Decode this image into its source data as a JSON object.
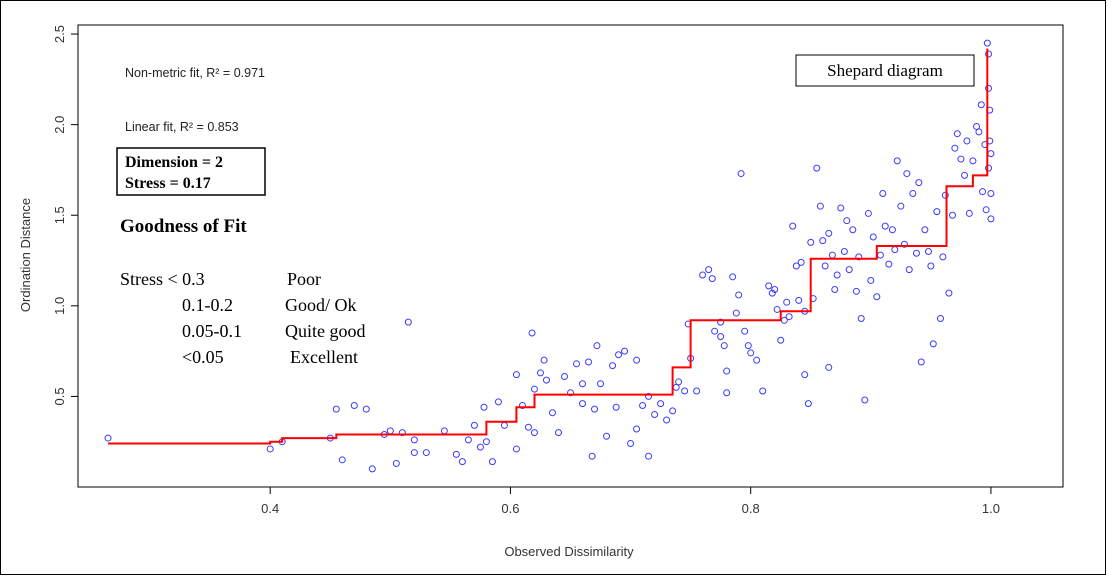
{
  "chart_data": {
    "type": "scatter",
    "title": "",
    "xlabel": "Observed Dissimilarity",
    "ylabel": "Ordination Distance",
    "xlim": [
      0.24,
      1.06
    ],
    "ylim": [
      0.0,
      2.55
    ],
    "x_ticks": [
      0.4,
      0.6,
      0.8,
      1.0
    ],
    "x_tick_labels": [
      "0.4",
      "0.6",
      "0.8",
      "1.0"
    ],
    "y_ticks": [
      0.5,
      1.0,
      1.5,
      2.0,
      2.5
    ],
    "y_tick_labels": [
      "0.5",
      "1.0",
      "1.5",
      "2.0",
      "2.5"
    ],
    "point_color": "#3b3bff",
    "line_color": "#ff0000",
    "annotations": {
      "nonmetric_fit": "Non-metric fit, R² = 0.971",
      "linear_fit": "Linear fit, R² = 0.853",
      "legend_title": "Shepard diagram",
      "dimension": "Dimension = 2",
      "stress": "Stress = 0.17",
      "goodness_title": "Goodness of Fit",
      "goodness_rows": [
        {
          "range": "Stress < 0.3",
          "label": "Poor"
        },
        {
          "range": "0.1-0.2",
          "label": "Good/ Ok"
        },
        {
          "range": "0.05-0.1",
          "label": "Quite good"
        },
        {
          "range": "<0.05",
          "label": "Excellent"
        }
      ]
    },
    "fit_step": [
      [
        0.265,
        0.24
      ],
      [
        0.4,
        0.24
      ],
      [
        0.4,
        0.25
      ],
      [
        0.41,
        0.25
      ],
      [
        0.41,
        0.27
      ],
      [
        0.455,
        0.27
      ],
      [
        0.455,
        0.29
      ],
      [
        0.58,
        0.29
      ],
      [
        0.58,
        0.36
      ],
      [
        0.605,
        0.36
      ],
      [
        0.605,
        0.44
      ],
      [
        0.62,
        0.44
      ],
      [
        0.62,
        0.51
      ],
      [
        0.735,
        0.51
      ],
      [
        0.735,
        0.66
      ],
      [
        0.75,
        0.66
      ],
      [
        0.75,
        0.92
      ],
      [
        0.825,
        0.92
      ],
      [
        0.825,
        0.97
      ],
      [
        0.85,
        0.97
      ],
      [
        0.85,
        1.26
      ],
      [
        0.905,
        1.26
      ],
      [
        0.905,
        1.33
      ],
      [
        0.963,
        1.33
      ],
      [
        0.963,
        1.66
      ],
      [
        0.985,
        1.66
      ],
      [
        0.985,
        1.72
      ],
      [
        0.997,
        1.72
      ],
      [
        0.997,
        2.42
      ]
    ],
    "points": [
      [
        0.265,
        0.27
      ],
      [
        0.4,
        0.21
      ],
      [
        0.41,
        0.25
      ],
      [
        0.45,
        0.27
      ],
      [
        0.455,
        0.43
      ],
      [
        0.46,
        0.15
      ],
      [
        0.47,
        0.45
      ],
      [
        0.48,
        0.43
      ],
      [
        0.485,
        0.1
      ],
      [
        0.495,
        0.29
      ],
      [
        0.5,
        0.31
      ],
      [
        0.505,
        0.13
      ],
      [
        0.51,
        0.3
      ],
      [
        0.515,
        0.91
      ],
      [
        0.52,
        0.26
      ],
      [
        0.52,
        0.19
      ],
      [
        0.53,
        0.19
      ],
      [
        0.545,
        0.31
      ],
      [
        0.555,
        0.18
      ],
      [
        0.56,
        0.14
      ],
      [
        0.565,
        0.26
      ],
      [
        0.57,
        0.34
      ],
      [
        0.575,
        0.22
      ],
      [
        0.578,
        0.44
      ],
      [
        0.58,
        0.25
      ],
      [
        0.585,
        0.14
      ],
      [
        0.59,
        0.47
      ],
      [
        0.595,
        0.34
      ],
      [
        0.605,
        0.21
      ],
      [
        0.605,
        0.62
      ],
      [
        0.61,
        0.45
      ],
      [
        0.615,
        0.33
      ],
      [
        0.618,
        0.85
      ],
      [
        0.62,
        0.3
      ],
      [
        0.62,
        0.54
      ],
      [
        0.625,
        0.63
      ],
      [
        0.628,
        0.7
      ],
      [
        0.63,
        0.59
      ],
      [
        0.635,
        0.41
      ],
      [
        0.64,
        0.3
      ],
      [
        0.645,
        0.61
      ],
      [
        0.65,
        0.52
      ],
      [
        0.655,
        0.68
      ],
      [
        0.66,
        0.46
      ],
      [
        0.66,
        0.57
      ],
      [
        0.665,
        0.69
      ],
      [
        0.668,
        0.17
      ],
      [
        0.67,
        0.43
      ],
      [
        0.672,
        0.78
      ],
      [
        0.675,
        0.57
      ],
      [
        0.68,
        0.28
      ],
      [
        0.685,
        0.67
      ],
      [
        0.688,
        0.44
      ],
      [
        0.69,
        0.73
      ],
      [
        0.695,
        0.75
      ],
      [
        0.7,
        0.24
      ],
      [
        0.705,
        0.7
      ],
      [
        0.705,
        0.32
      ],
      [
        0.71,
        0.45
      ],
      [
        0.715,
        0.17
      ],
      [
        0.715,
        0.5
      ],
      [
        0.72,
        0.4
      ],
      [
        0.725,
        0.46
      ],
      [
        0.73,
        0.37
      ],
      [
        0.735,
        0.42
      ],
      [
        0.738,
        0.55
      ],
      [
        0.74,
        0.58
      ],
      [
        0.745,
        0.53
      ],
      [
        0.748,
        0.9
      ],
      [
        0.75,
        0.71
      ],
      [
        0.755,
        0.53
      ],
      [
        0.76,
        1.17
      ],
      [
        0.765,
        1.2
      ],
      [
        0.768,
        1.15
      ],
      [
        0.77,
        0.86
      ],
      [
        0.775,
        0.91
      ],
      [
        0.775,
        0.83
      ],
      [
        0.778,
        0.78
      ],
      [
        0.78,
        0.64
      ],
      [
        0.78,
        0.52
      ],
      [
        0.785,
        1.16
      ],
      [
        0.788,
        0.96
      ],
      [
        0.79,
        1.06
      ],
      [
        0.792,
        1.73
      ],
      [
        0.795,
        0.86
      ],
      [
        0.798,
        0.78
      ],
      [
        0.8,
        0.74
      ],
      [
        0.805,
        0.7
      ],
      [
        0.81,
        0.53
      ],
      [
        0.815,
        1.11
      ],
      [
        0.818,
        1.07
      ],
      [
        0.82,
        1.09
      ],
      [
        0.822,
        0.98
      ],
      [
        0.825,
        0.81
      ],
      [
        0.828,
        0.92
      ],
      [
        0.83,
        1.02
      ],
      [
        0.832,
        0.94
      ],
      [
        0.835,
        1.44
      ],
      [
        0.838,
        1.22
      ],
      [
        0.84,
        1.03
      ],
      [
        0.842,
        1.24
      ],
      [
        0.845,
        0.97
      ],
      [
        0.845,
        0.62
      ],
      [
        0.848,
        0.46
      ],
      [
        0.85,
        1.35
      ],
      [
        0.852,
        1.04
      ],
      [
        0.855,
        1.76
      ],
      [
        0.858,
        1.55
      ],
      [
        0.86,
        1.36
      ],
      [
        0.862,
        1.22
      ],
      [
        0.865,
        1.4
      ],
      [
        0.865,
        0.66
      ],
      [
        0.868,
        1.28
      ],
      [
        0.87,
        1.09
      ],
      [
        0.872,
        1.17
      ],
      [
        0.875,
        1.54
      ],
      [
        0.878,
        1.3
      ],
      [
        0.88,
        1.47
      ],
      [
        0.882,
        1.2
      ],
      [
        0.885,
        1.42
      ],
      [
        0.888,
        1.08
      ],
      [
        0.89,
        1.27
      ],
      [
        0.892,
        0.93
      ],
      [
        0.895,
        0.48
      ],
      [
        0.898,
        1.51
      ],
      [
        0.9,
        1.14
      ],
      [
        0.902,
        1.38
      ],
      [
        0.905,
        1.05
      ],
      [
        0.908,
        1.28
      ],
      [
        0.91,
        1.62
      ],
      [
        0.912,
        1.44
      ],
      [
        0.915,
        1.23
      ],
      [
        0.918,
        1.42
      ],
      [
        0.92,
        1.31
      ],
      [
        0.922,
        1.8
      ],
      [
        0.925,
        1.55
      ],
      [
        0.928,
        1.34
      ],
      [
        0.93,
        1.73
      ],
      [
        0.932,
        1.2
      ],
      [
        0.935,
        1.62
      ],
      [
        0.938,
        1.29
      ],
      [
        0.94,
        1.68
      ],
      [
        0.942,
        0.69
      ],
      [
        0.945,
        1.42
      ],
      [
        0.948,
        1.3
      ],
      [
        0.95,
        1.22
      ],
      [
        0.952,
        0.79
      ],
      [
        0.955,
        1.52
      ],
      [
        0.958,
        0.93
      ],
      [
        0.96,
        1.27
      ],
      [
        0.962,
        1.61
      ],
      [
        0.965,
        1.07
      ],
      [
        0.968,
        1.5
      ],
      [
        0.97,
        1.87
      ],
      [
        0.972,
        1.95
      ],
      [
        0.975,
        1.81
      ],
      [
        0.978,
        1.72
      ],
      [
        0.98,
        1.91
      ],
      [
        0.982,
        1.51
      ],
      [
        0.985,
        1.8
      ],
      [
        0.988,
        1.99
      ],
      [
        0.99,
        1.96
      ],
      [
        0.992,
        2.11
      ],
      [
        0.993,
        1.63
      ],
      [
        0.995,
        1.89
      ],
      [
        0.997,
        2.45
      ],
      [
        0.998,
        2.39
      ],
      [
        0.998,
        2.2
      ],
      [
        0.999,
        2.08
      ],
      [
        0.999,
        1.91
      ],
      [
        1.0,
        1.84
      ],
      [
        1.0,
        1.62
      ],
      [
        1.0,
        1.48
      ],
      [
        0.998,
        1.76
      ],
      [
        0.996,
        1.53
      ]
    ]
  }
}
